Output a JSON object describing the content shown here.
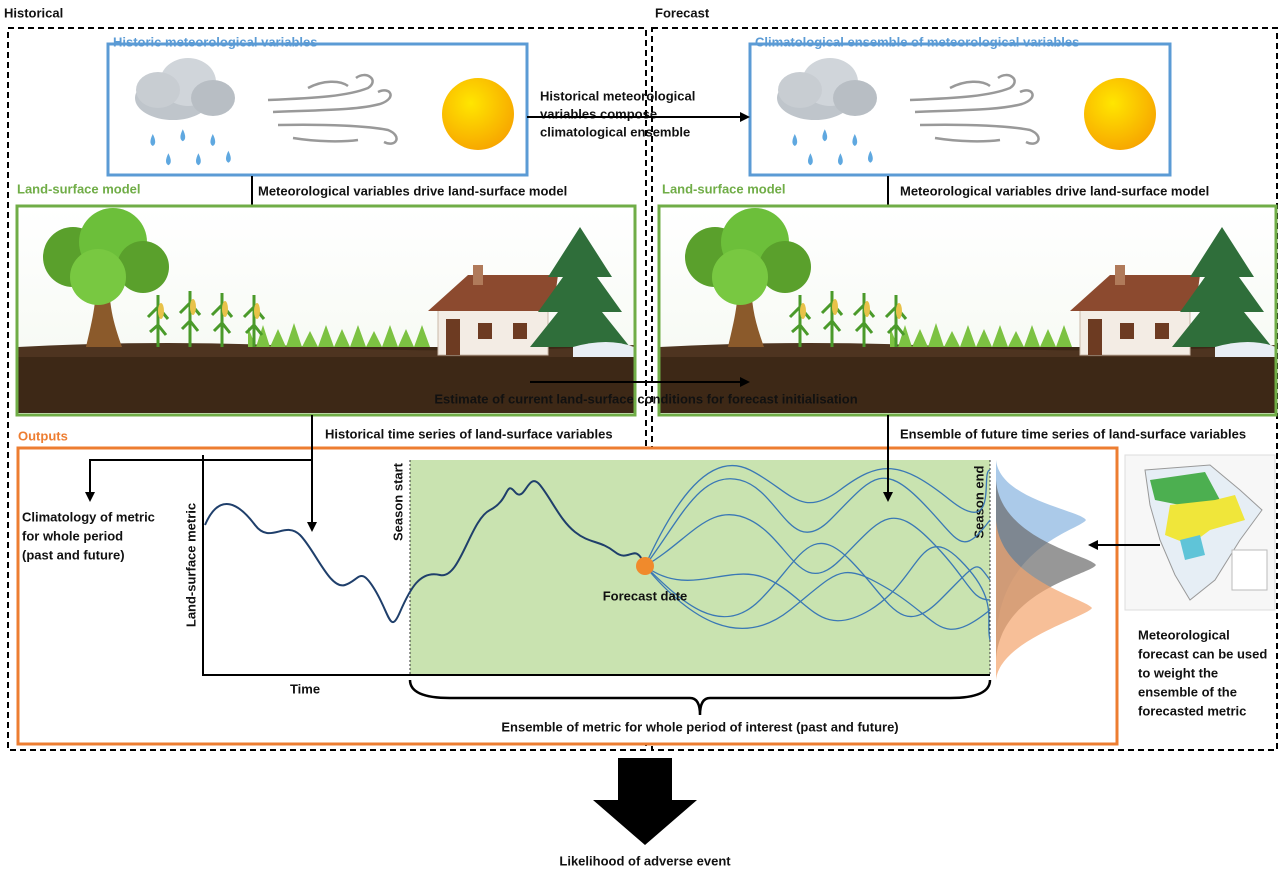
{
  "header": {
    "historical": "Historical",
    "forecast": "Forecast"
  },
  "historic_meteo": {
    "title": "Historic meteorological variables"
  },
  "climatological_meteo": {
    "title": "Climatological ensemble of meteorological variables"
  },
  "compose_note": [
    "Historical meteorological",
    "variables compose",
    "climatological ensemble"
  ],
  "drive_note_left": "Meteorological variables drive land-surface model",
  "drive_note_right": "Meteorological variables drive land-surface model",
  "land_left": {
    "title": "Land-surface model"
  },
  "land_right": {
    "title": "Land-surface model"
  },
  "initialisation_note": "Estimate of current land-surface conditions for forecast initialisation",
  "outputs": {
    "title": "Outputs",
    "historical_series": "Historical time series of land-surface variables",
    "ensemble_series": "Ensemble of future time series of land-surface variables",
    "climatology_note": [
      "Climatology of metric",
      "for whole period",
      "(past and future)"
    ],
    "y_axis": "Land-surface metric",
    "x_axis": "Time",
    "season_start": "Season start",
    "season_end": "Season end",
    "forecast_date": "Forecast date",
    "ensemble_note": "Ensemble of metric for whole period of interest (past and future)",
    "weight_note": [
      "Meteorological",
      "forecast can be used",
      "to weight the",
      "ensemble of the",
      "forecasted metric"
    ]
  },
  "result": "Likelihood of adverse event"
}
